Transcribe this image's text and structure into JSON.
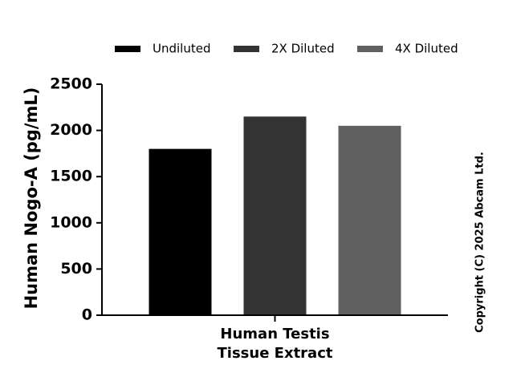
{
  "chart_data": {
    "type": "bar",
    "categories": [
      "Human Testis\nTissue Extract"
    ],
    "series": [
      {
        "name": "Undiluted",
        "values": [
          1800
        ],
        "color": "#000000"
      },
      {
        "name": "2X Diluted",
        "values": [
          2150
        ],
        "color": "#333333"
      },
      {
        "name": "4X Diluted",
        "values": [
          2050
        ],
        "color": "#606060"
      }
    ],
    "ylabel": "Human Nogo-A (pg/mL)",
    "xlabel": "",
    "ylim": [
      0,
      2500
    ],
    "yticks": [
      0,
      500,
      1000,
      1500,
      2000,
      2500
    ],
    "legend_position": "top",
    "grid": false
  },
  "copyright": "Copyright (C) 2025 Abcam Ltd."
}
